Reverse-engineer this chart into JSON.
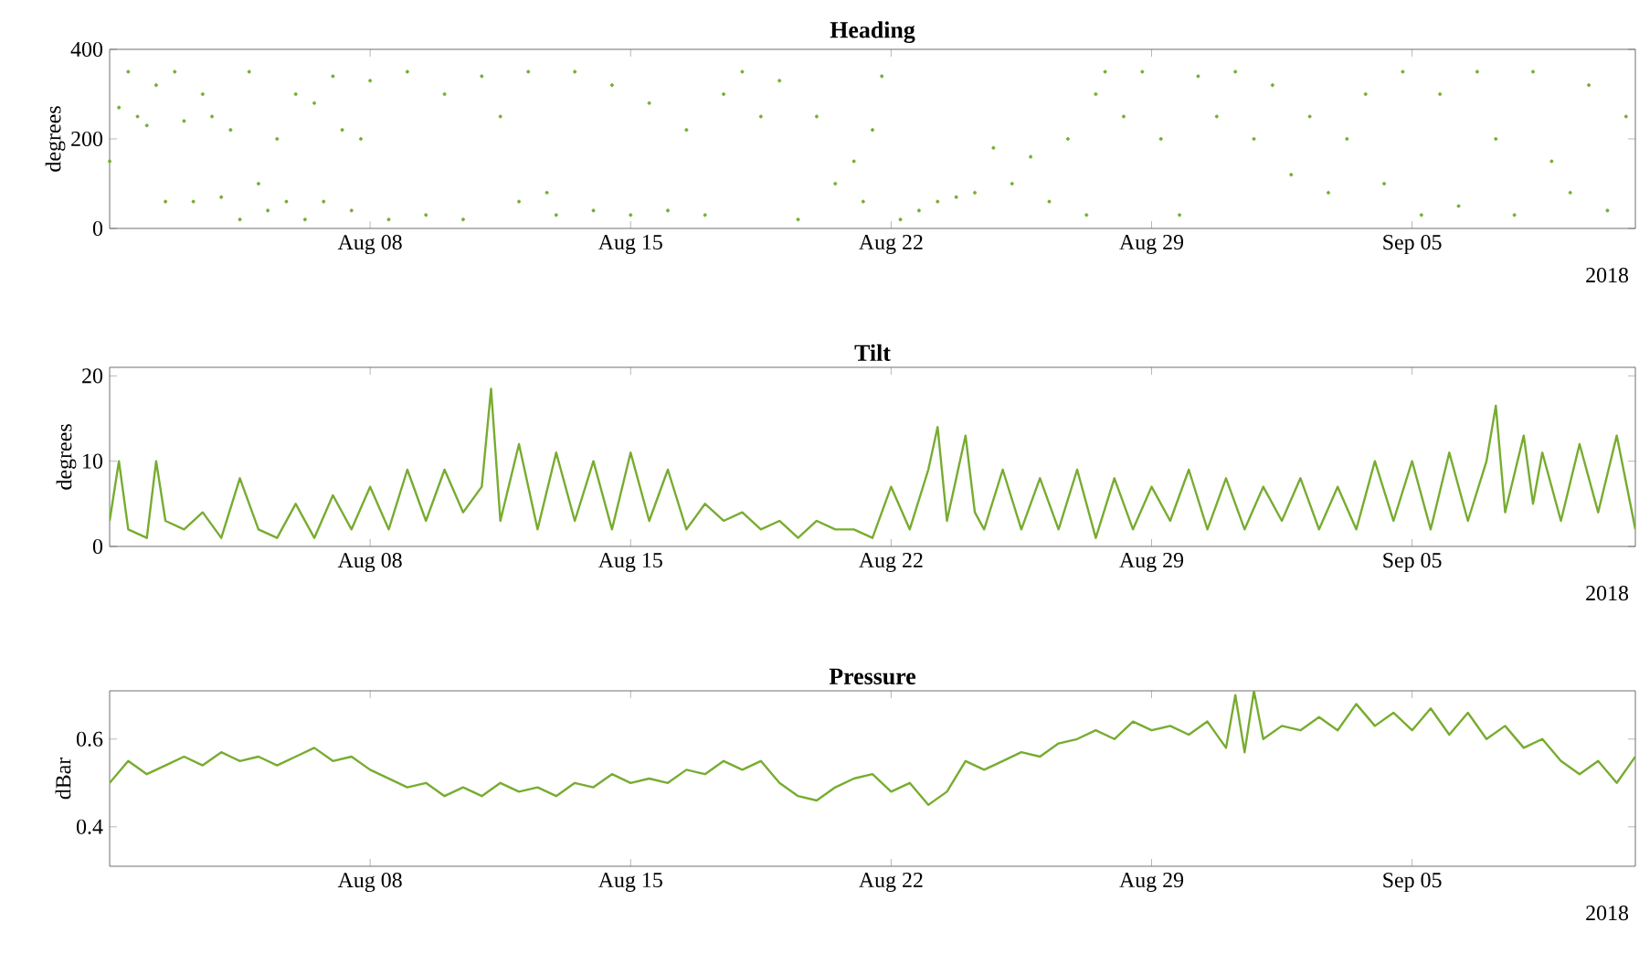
{
  "chart_data": [
    {
      "type": "scatter",
      "title": "Heading",
      "ylabel": "degrees",
      "xlabel": "2018",
      "marker": "circle",
      "color": "#77ac30",
      "xlim": [
        "2018-08-01",
        "2018-09-11"
      ],
      "ylim": [
        0,
        400
      ],
      "yticks": [
        0,
        200,
        400
      ],
      "xticks": [
        {
          "value": "2018-08-08",
          "label": "Aug 08"
        },
        {
          "value": "2018-08-15",
          "label": "Aug 15"
        },
        {
          "value": "2018-08-22",
          "label": "Aug 22"
        },
        {
          "value": "2018-08-29",
          "label": "Aug 29"
        },
        {
          "value": "2018-09-05",
          "label": "Sep 05"
        }
      ],
      "x": [
        "2018-08-01T00:00",
        "2018-08-01T06:00",
        "2018-08-01T12:00",
        "2018-08-01T18:00",
        "2018-08-02T00:00",
        "2018-08-02T06:00",
        "2018-08-02T12:00",
        "2018-08-02T18:00",
        "2018-08-03T00:00",
        "2018-08-03T06:00",
        "2018-08-03T12:00",
        "2018-08-03T18:00",
        "2018-08-04T00:00",
        "2018-08-04T06:00",
        "2018-08-04T12:00",
        "2018-08-04T18:00",
        "2018-08-05T00:00",
        "2018-08-05T06:00",
        "2018-08-05T12:00",
        "2018-08-05T18:00",
        "2018-08-06T00:00",
        "2018-08-06T06:00",
        "2018-08-06T12:00",
        "2018-08-06T18:00",
        "2018-08-07T00:00",
        "2018-08-07T06:00",
        "2018-08-07T12:00",
        "2018-08-07T18:00",
        "2018-08-08T00:00",
        "2018-08-08T12:00",
        "2018-08-09T00:00",
        "2018-08-09T12:00",
        "2018-08-10T00:00",
        "2018-08-10T12:00",
        "2018-08-11T00:00",
        "2018-08-11T12:00",
        "2018-08-12T00:00",
        "2018-08-12T06:00",
        "2018-08-12T18:00",
        "2018-08-13T00:00",
        "2018-08-13T12:00",
        "2018-08-14T00:00",
        "2018-08-14T12:00",
        "2018-08-15T00:00",
        "2018-08-15T12:00",
        "2018-08-16T00:00",
        "2018-08-16T12:00",
        "2018-08-17T00:00",
        "2018-08-17T12:00",
        "2018-08-18T00:00",
        "2018-08-18T12:00",
        "2018-08-19T00:00",
        "2018-08-19T12:00",
        "2018-08-20T00:00",
        "2018-08-20T12:00",
        "2018-08-21T00:00",
        "2018-08-21T06:00",
        "2018-08-21T12:00",
        "2018-08-21T18:00",
        "2018-08-22T06:00",
        "2018-08-22T18:00",
        "2018-08-23T06:00",
        "2018-08-23T18:00",
        "2018-08-24T06:00",
        "2018-08-24T18:00",
        "2018-08-25T06:00",
        "2018-08-25T18:00",
        "2018-08-26T06:00",
        "2018-08-26T18:00",
        "2018-08-27T06:00",
        "2018-08-27T12:00",
        "2018-08-27T18:00",
        "2018-08-28T06:00",
        "2018-08-28T18:00",
        "2018-08-29T06:00",
        "2018-08-29T18:00",
        "2018-08-30T06:00",
        "2018-08-30T18:00",
        "2018-08-31T06:00",
        "2018-08-31T18:00",
        "2018-09-01T06:00",
        "2018-09-01T18:00",
        "2018-09-02T06:00",
        "2018-09-02T18:00",
        "2018-09-03T06:00",
        "2018-09-03T18:00",
        "2018-09-04T06:00",
        "2018-09-04T18:00",
        "2018-09-05T06:00",
        "2018-09-05T18:00",
        "2018-09-06T06:00",
        "2018-09-06T18:00",
        "2018-09-07T06:00",
        "2018-09-07T18:00",
        "2018-09-08T06:00",
        "2018-09-08T18:00",
        "2018-09-09T06:00",
        "2018-09-09T18:00",
        "2018-09-10T06:00",
        "2018-09-10T18:00"
      ],
      "values": [
        150,
        270,
        350,
        250,
        230,
        320,
        60,
        350,
        240,
        60,
        300,
        250,
        70,
        220,
        20,
        350,
        100,
        40,
        200,
        60,
        300,
        20,
        280,
        60,
        340,
        220,
        40,
        200,
        330,
        20,
        350,
        30,
        300,
        20,
        340,
        250,
        60,
        350,
        80,
        30,
        350,
        40,
        320,
        30,
        280,
        40,
        220,
        30,
        300,
        350,
        250,
        330,
        20,
        250,
        100,
        150,
        60,
        220,
        340,
        20,
        40,
        60,
        70,
        80,
        180,
        100,
        160,
        60,
        200,
        30,
        300,
        350,
        250,
        350,
        200,
        30,
        340,
        250,
        350,
        200,
        320,
        120,
        250,
        80,
        200,
        300,
        100,
        350,
        30,
        300,
        50,
        350,
        200,
        30,
        350,
        150,
        80,
        320,
        40,
        250
      ]
    },
    {
      "type": "line",
      "title": "Tilt",
      "ylabel": "degrees",
      "xlabel": "2018",
      "color": "#77ac30",
      "xlim": [
        "2018-08-01",
        "2018-09-11"
      ],
      "ylim": [
        0,
        21
      ],
      "yticks": [
        0,
        10,
        20
      ],
      "xticks": [
        {
          "value": "2018-08-08",
          "label": "Aug 08"
        },
        {
          "value": "2018-08-15",
          "label": "Aug 15"
        },
        {
          "value": "2018-08-22",
          "label": "Aug 22"
        },
        {
          "value": "2018-08-29",
          "label": "Aug 29"
        },
        {
          "value": "2018-09-05",
          "label": "Sep 05"
        }
      ],
      "x": [
        "2018-08-01T00:00",
        "2018-08-01T06:00",
        "2018-08-01T12:00",
        "2018-08-02T00:00",
        "2018-08-02T06:00",
        "2018-08-02T12:00",
        "2018-08-03T00:00",
        "2018-08-03T12:00",
        "2018-08-04T00:00",
        "2018-08-04T12:00",
        "2018-08-05T00:00",
        "2018-08-05T12:00",
        "2018-08-06T00:00",
        "2018-08-06T12:00",
        "2018-08-07T00:00",
        "2018-08-07T12:00",
        "2018-08-08T00:00",
        "2018-08-08T12:00",
        "2018-08-09T00:00",
        "2018-08-09T12:00",
        "2018-08-10T00:00",
        "2018-08-10T12:00",
        "2018-08-11T00:00",
        "2018-08-11T06:00",
        "2018-08-11T12:00",
        "2018-08-12T00:00",
        "2018-08-12T12:00",
        "2018-08-13T00:00",
        "2018-08-13T12:00",
        "2018-08-14T00:00",
        "2018-08-14T12:00",
        "2018-08-15T00:00",
        "2018-08-15T12:00",
        "2018-08-16T00:00",
        "2018-08-16T12:00",
        "2018-08-17T00:00",
        "2018-08-17T12:00",
        "2018-08-18T00:00",
        "2018-08-18T12:00",
        "2018-08-19T00:00",
        "2018-08-19T12:00",
        "2018-08-20T00:00",
        "2018-08-20T12:00",
        "2018-08-21T00:00",
        "2018-08-21T12:00",
        "2018-08-22T00:00",
        "2018-08-22T12:00",
        "2018-08-23T00:00",
        "2018-08-23T06:00",
        "2018-08-23T12:00",
        "2018-08-24T00:00",
        "2018-08-24T06:00",
        "2018-08-24T12:00",
        "2018-08-25T00:00",
        "2018-08-25T12:00",
        "2018-08-26T00:00",
        "2018-08-26T12:00",
        "2018-08-27T00:00",
        "2018-08-27T12:00",
        "2018-08-28T00:00",
        "2018-08-28T12:00",
        "2018-08-29T00:00",
        "2018-08-29T12:00",
        "2018-08-30T00:00",
        "2018-08-30T12:00",
        "2018-08-31T00:00",
        "2018-08-31T12:00",
        "2018-09-01T00:00",
        "2018-09-01T12:00",
        "2018-09-02T00:00",
        "2018-09-02T12:00",
        "2018-09-03T00:00",
        "2018-09-03T12:00",
        "2018-09-04T00:00",
        "2018-09-04T12:00",
        "2018-09-05T00:00",
        "2018-09-05T12:00",
        "2018-09-06T00:00",
        "2018-09-06T12:00",
        "2018-09-07T00:00",
        "2018-09-07T06:00",
        "2018-09-07T12:00",
        "2018-09-08T00:00",
        "2018-09-08T06:00",
        "2018-09-08T12:00",
        "2018-09-09T00:00",
        "2018-09-09T12:00",
        "2018-09-10T00:00",
        "2018-09-10T12:00",
        "2018-09-11T00:00"
      ],
      "values": [
        3,
        10,
        2,
        1,
        10,
        3,
        2,
        4,
        1,
        8,
        2,
        1,
        5,
        1,
        6,
        2,
        7,
        2,
        9,
        3,
        9,
        4,
        7,
        18.5,
        3,
        12,
        2,
        11,
        3,
        10,
        2,
        11,
        3,
        9,
        2,
        5,
        3,
        4,
        2,
        3,
        1,
        3,
        2,
        2,
        1,
        7,
        2,
        9,
        14,
        3,
        13,
        4,
        2,
        9,
        2,
        8,
        2,
        9,
        1,
        8,
        2,
        7,
        3,
        9,
        2,
        8,
        2,
        7,
        3,
        8,
        2,
        7,
        2,
        10,
        3,
        10,
        2,
        11,
        3,
        10,
        16.5,
        4,
        13,
        5,
        11,
        3,
        12,
        4,
        13,
        2
      ]
    },
    {
      "type": "line",
      "title": "Pressure",
      "ylabel": "dBar",
      "xlabel": "2018",
      "color": "#77ac30",
      "xlim": [
        "2018-08-01",
        "2018-09-11"
      ],
      "ylim": [
        0.31,
        0.71
      ],
      "yticks": [
        0.4,
        0.6
      ],
      "xticks": [
        {
          "value": "2018-08-08",
          "label": "Aug 08"
        },
        {
          "value": "2018-08-15",
          "label": "Aug 15"
        },
        {
          "value": "2018-08-22",
          "label": "Aug 22"
        },
        {
          "value": "2018-08-29",
          "label": "Aug 29"
        },
        {
          "value": "2018-09-05",
          "label": "Sep 05"
        }
      ],
      "x": [
        "2018-08-01T00:00",
        "2018-08-01T12:00",
        "2018-08-02T00:00",
        "2018-08-02T12:00",
        "2018-08-03T00:00",
        "2018-08-03T12:00",
        "2018-08-04T00:00",
        "2018-08-04T12:00",
        "2018-08-05T00:00",
        "2018-08-05T12:00",
        "2018-08-06T00:00",
        "2018-08-06T12:00",
        "2018-08-07T00:00",
        "2018-08-07T12:00",
        "2018-08-08T00:00",
        "2018-08-08T12:00",
        "2018-08-09T00:00",
        "2018-08-09T12:00",
        "2018-08-10T00:00",
        "2018-08-10T12:00",
        "2018-08-11T00:00",
        "2018-08-11T12:00",
        "2018-08-12T00:00",
        "2018-08-12T12:00",
        "2018-08-13T00:00",
        "2018-08-13T12:00",
        "2018-08-14T00:00",
        "2018-08-14T12:00",
        "2018-08-15T00:00",
        "2018-08-15T12:00",
        "2018-08-16T00:00",
        "2018-08-16T12:00",
        "2018-08-17T00:00",
        "2018-08-17T12:00",
        "2018-08-18T00:00",
        "2018-08-18T12:00",
        "2018-08-19T00:00",
        "2018-08-19T12:00",
        "2018-08-20T00:00",
        "2018-08-20T12:00",
        "2018-08-21T00:00",
        "2018-08-21T12:00",
        "2018-08-22T00:00",
        "2018-08-22T12:00",
        "2018-08-23T00:00",
        "2018-08-23T12:00",
        "2018-08-24T00:00",
        "2018-08-24T12:00",
        "2018-08-25T00:00",
        "2018-08-25T12:00",
        "2018-08-26T00:00",
        "2018-08-26T12:00",
        "2018-08-27T00:00",
        "2018-08-27T12:00",
        "2018-08-28T00:00",
        "2018-08-28T12:00",
        "2018-08-29T00:00",
        "2018-08-29T12:00",
        "2018-08-30T00:00",
        "2018-08-30T12:00",
        "2018-08-31T00:00",
        "2018-08-31T06:00",
        "2018-08-31T12:00",
        "2018-08-31T18:00",
        "2018-09-01T00:00",
        "2018-09-01T12:00",
        "2018-09-02T00:00",
        "2018-09-02T12:00",
        "2018-09-03T00:00",
        "2018-09-03T12:00",
        "2018-09-04T00:00",
        "2018-09-04T12:00",
        "2018-09-05T00:00",
        "2018-09-05T12:00",
        "2018-09-06T00:00",
        "2018-09-06T12:00",
        "2018-09-07T00:00",
        "2018-09-07T12:00",
        "2018-09-08T00:00",
        "2018-09-08T12:00",
        "2018-09-09T00:00",
        "2018-09-09T12:00",
        "2018-09-10T00:00",
        "2018-09-10T12:00",
        "2018-09-11T00:00"
      ],
      "values": [
        0.5,
        0.55,
        0.52,
        0.54,
        0.56,
        0.54,
        0.57,
        0.55,
        0.56,
        0.54,
        0.56,
        0.58,
        0.55,
        0.56,
        0.53,
        0.51,
        0.49,
        0.5,
        0.47,
        0.49,
        0.47,
        0.5,
        0.48,
        0.49,
        0.47,
        0.5,
        0.49,
        0.52,
        0.5,
        0.51,
        0.5,
        0.53,
        0.52,
        0.55,
        0.53,
        0.55,
        0.5,
        0.47,
        0.46,
        0.49,
        0.51,
        0.52,
        0.48,
        0.5,
        0.45,
        0.48,
        0.55,
        0.53,
        0.55,
        0.57,
        0.56,
        0.59,
        0.6,
        0.62,
        0.6,
        0.64,
        0.62,
        0.63,
        0.61,
        0.64,
        0.58,
        0.7,
        0.57,
        0.71,
        0.6,
        0.63,
        0.62,
        0.65,
        0.62,
        0.68,
        0.63,
        0.66,
        0.62,
        0.67,
        0.61,
        0.66,
        0.6,
        0.63,
        0.58,
        0.6,
        0.55,
        0.52,
        0.55,
        0.5,
        0.56
      ]
    }
  ]
}
